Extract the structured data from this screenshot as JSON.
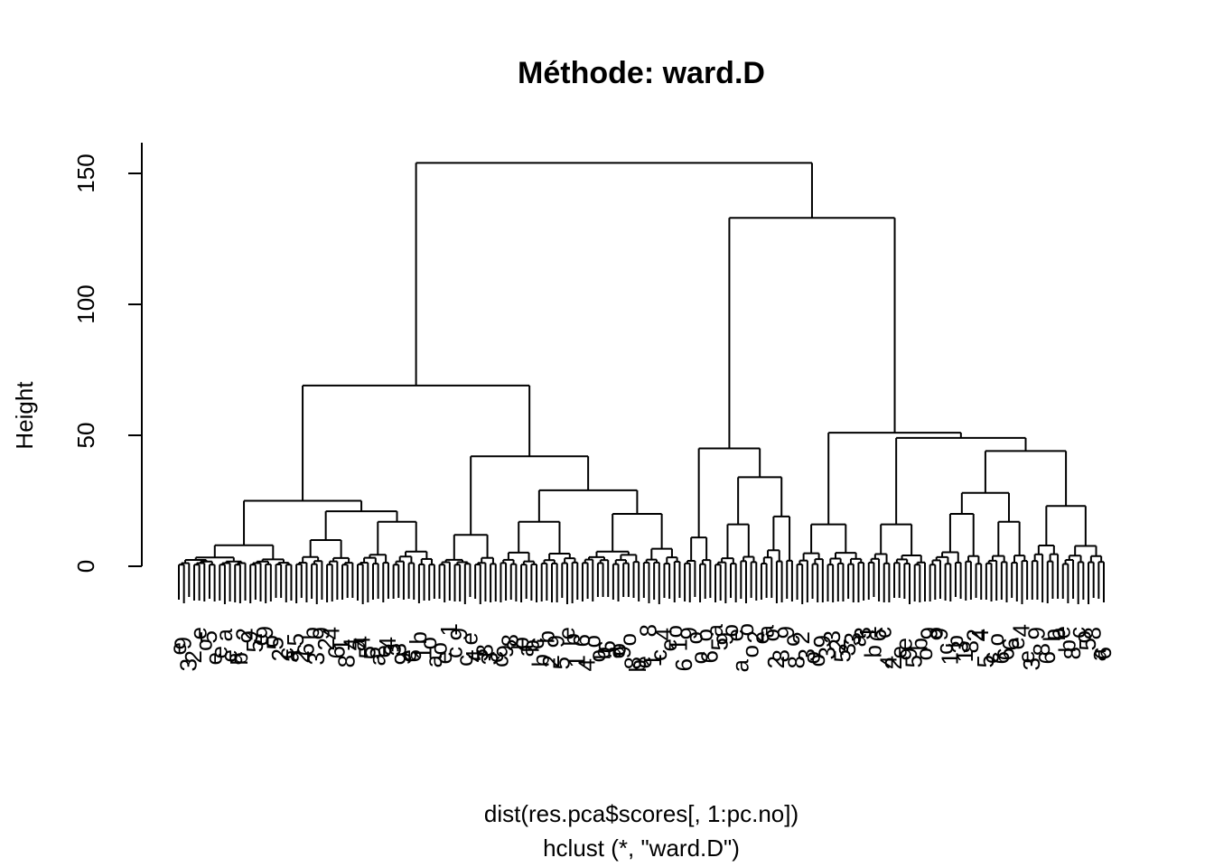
{
  "chart_data": {
    "type": "dendrogram",
    "title": "Méthode: ward.D",
    "ylabel": "Height",
    "xlabel": "dist(res.pca$scores[, 1:pc.no])",
    "sub": "hclust (*, \"ward.D\")",
    "y_ticks": [
      0,
      50,
      100,
      150
    ],
    "ylim": [
      0,
      160
    ],
    "leaf_count": 182,
    "merges": [
      {
        "name": "root",
        "height": 154
      },
      {
        "name": "left-cluster",
        "height": 69
      },
      {
        "name": "right-cluster",
        "height": 133
      },
      {
        "name": "left-left",
        "height": 25
      },
      {
        "name": "left-right",
        "height": 42
      },
      {
        "name": "right-left",
        "height": 45
      },
      {
        "name": "right-right",
        "height": 51
      },
      {
        "name": "right-left-sub",
        "height": 34
      },
      {
        "name": "right-right-sub",
        "height": 49
      },
      {
        "name": "right-right-sub-b",
        "height": 44
      },
      {
        "name": "right-right-sub-c",
        "height": 28
      },
      {
        "name": "left-right-sub",
        "height": 29
      }
    ],
    "leaf_label_glyphs": [
      "1",
      "2",
      "3",
      "4",
      "5",
      "6",
      "8",
      "9",
      "b",
      "a",
      "c",
      "e",
      "o"
    ]
  }
}
